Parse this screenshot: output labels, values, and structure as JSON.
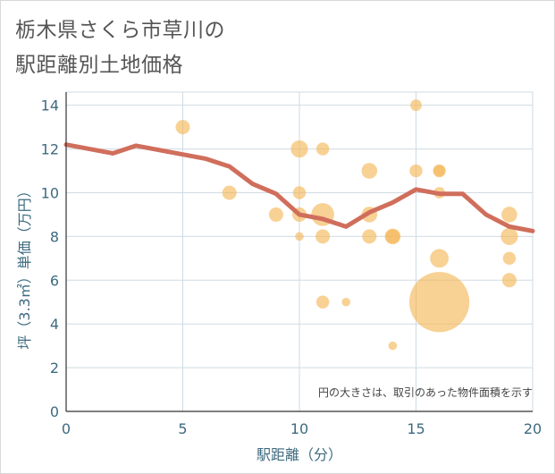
{
  "title_line1": "栃木県さくら市草川の",
  "title_line2": "駅距離別土地価格",
  "chart_data": {
    "type": "scatter",
    "title": "栃木県さくら市草川の駅距離別土地価格",
    "xlabel": "駅距離（分）",
    "ylabel": "坪（3.3㎡）単価（万円）",
    "xlim": [
      0,
      20
    ],
    "ylim": [
      0,
      14.6
    ],
    "xticks": [
      0,
      5,
      10,
      15,
      20
    ],
    "yticks": [
      0,
      2,
      4,
      6,
      8,
      10,
      12,
      14
    ],
    "grid": true,
    "annotation": "円の大きさは、取引のあった物件面積を示す",
    "colors": {
      "bubble": "#f5b95a",
      "line": "#d06e5c",
      "axis_text": "#3d6a7f",
      "grid": "#cfdbe3"
    },
    "bubbles": [
      {
        "x": 5,
        "y": 13,
        "size": 1
      },
      {
        "x": 7,
        "y": 10,
        "size": 1
      },
      {
        "x": 9,
        "y": 9,
        "size": 1
      },
      {
        "x": 10,
        "y": 12,
        "size": 1.2
      },
      {
        "x": 10,
        "y": 10,
        "size": 0.9
      },
      {
        "x": 10,
        "y": 9,
        "size": 1
      },
      {
        "x": 10,
        "y": 8,
        "size": 0.6
      },
      {
        "x": 11,
        "y": 12,
        "size": 0.9
      },
      {
        "x": 11,
        "y": 9,
        "size": 1.6
      },
      {
        "x": 11,
        "y": 8,
        "size": 1
      },
      {
        "x": 11,
        "y": 5,
        "size": 0.9
      },
      {
        "x": 12,
        "y": 5,
        "size": 0.6
      },
      {
        "x": 13,
        "y": 11,
        "size": 1.1
      },
      {
        "x": 13,
        "y": 9,
        "size": 1.1
      },
      {
        "x": 13,
        "y": 8,
        "size": 1
      },
      {
        "x": 14,
        "y": 8,
        "size": 1.1
      },
      {
        "x": 14,
        "y": 8,
        "size": 1
      },
      {
        "x": 14,
        "y": 3,
        "size": 0.6
      },
      {
        "x": 15,
        "y": 14,
        "size": 0.8
      },
      {
        "x": 15,
        "y": 11,
        "size": 0.9
      },
      {
        "x": 16,
        "y": 11,
        "size": 0.9
      },
      {
        "x": 16,
        "y": 11,
        "size": 0.8
      },
      {
        "x": 16,
        "y": 10,
        "size": 0.8
      },
      {
        "x": 16,
        "y": 7,
        "size": 1.3
      },
      {
        "x": 16,
        "y": 5,
        "size": 4.2
      },
      {
        "x": 19,
        "y": 9,
        "size": 1.1
      },
      {
        "x": 19,
        "y": 8,
        "size": 1.2
      },
      {
        "x": 19,
        "y": 7,
        "size": 0.9
      },
      {
        "x": 19,
        "y": 6,
        "size": 1
      }
    ],
    "trend_line": {
      "x": [
        0,
        1,
        2,
        3,
        4,
        5,
        6,
        7,
        8,
        9,
        10,
        11,
        12,
        13,
        14,
        15,
        16,
        17,
        18,
        19,
        20
      ],
      "y": [
        12.2,
        12.0,
        11.8,
        12.15,
        11.95,
        11.75,
        11.55,
        11.2,
        10.4,
        9.95,
        9.0,
        8.8,
        8.45,
        9.1,
        9.55,
        10.15,
        9.95,
        9.95,
        9.0,
        8.45,
        8.25
      ]
    }
  }
}
